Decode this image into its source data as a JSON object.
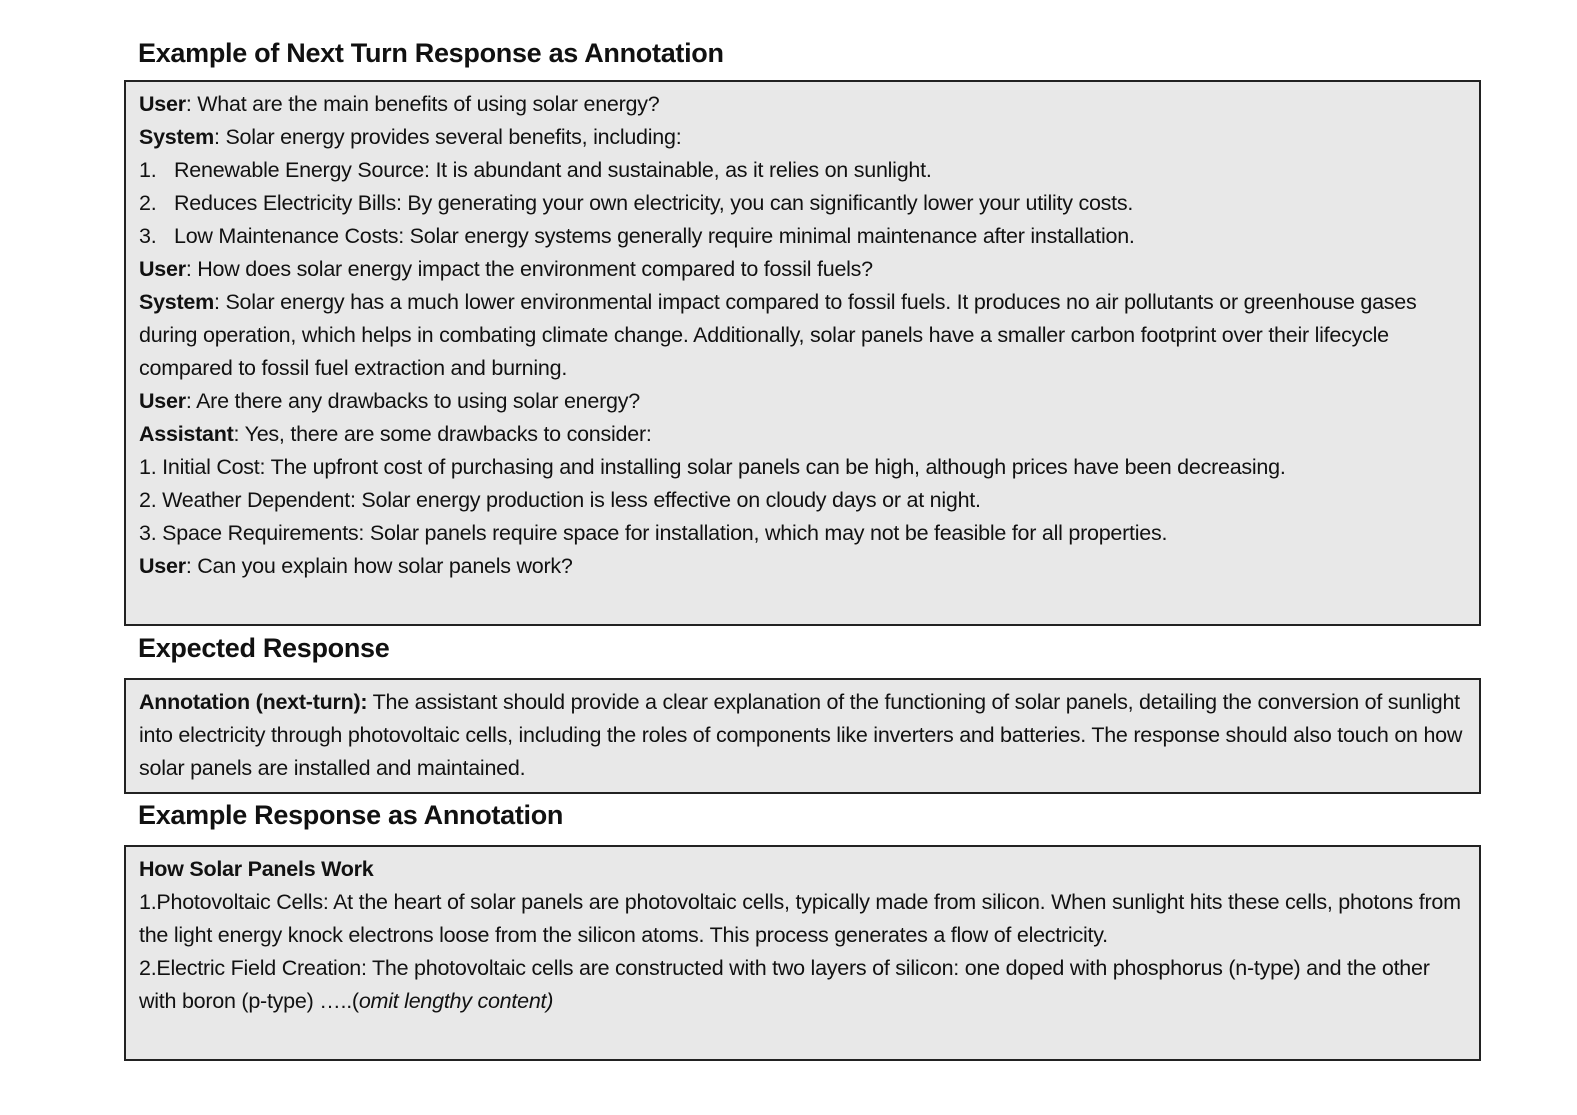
{
  "section1": {
    "title": "Example of Next Turn Response as Annotation",
    "turns": [
      {
        "speaker": "User",
        "text": ": What are the main benefits of using solar energy?"
      },
      {
        "speaker": "System",
        "text": ": Solar energy provides several benefits, including:"
      },
      {
        "num": "1.",
        "text": "Renewable Energy Source: It is abundant and sustainable, as it relies on sunlight."
      },
      {
        "num": "2.",
        "text": "Reduces Electricity Bills: By generating your own electricity, you can significantly lower your utility costs."
      },
      {
        "num": "3.",
        "text": "Low Maintenance Costs: Solar energy systems generally require minimal maintenance after installation."
      },
      {
        "speaker": "User",
        "text": ": How does solar energy impact the environment compared to fossil fuels?"
      },
      {
        "speaker": "System",
        "text": ": Solar energy has a much lower environmental impact compared to fossil fuels. It produces no air pollutants or greenhouse gases during operation, which helps in combating climate change. Additionally, solar panels have a smaller carbon footprint over their lifecycle compared to fossil fuel extraction and burning."
      },
      {
        "speaker": "User",
        "text": ": Are there any drawbacks to using solar energy?"
      },
      {
        "speaker": "Assistant",
        "text": ": Yes, there are some drawbacks to consider:"
      },
      {
        "text": "1. Initial Cost: The upfront cost of purchasing and installing solar panels can be high, although prices have been decreasing."
      },
      {
        "text": "2. Weather Dependent: Solar energy production is less effective on cloudy days or at night."
      },
      {
        "text": "3. Space Requirements: Solar panels require space for installation, which may not be feasible for all properties."
      },
      {
        "speaker": "User",
        "text": ": Can you explain how solar panels work?"
      }
    ]
  },
  "section2": {
    "title": "Expected Response",
    "label": "Annotation (next-turn):",
    "text": " The assistant should provide a clear explanation of the functioning of solar panels, detailing the conversion of sunlight into electricity through photovoltaic cells, including the roles of components like inverters and batteries. The response should also touch on how solar panels are installed and maintained."
  },
  "section3": {
    "title": "Example Response as Annotation",
    "heading": "How Solar Panels Work",
    "p1": "1.Photovoltaic Cells: At the heart of solar panels are photovoltaic cells, typically made from silicon. When sunlight hits these cells, photons from the light energy knock electrons loose from the silicon atoms. This process generates a flow of electricity.",
    "p2": "2.Electric Field Creation: The photovoltaic cells are constructed with two layers of silicon: one doped with phosphorus (n-type) and the other with boron (p-type) …..(",
    "p2_italic": "omit lengthy content)"
  }
}
